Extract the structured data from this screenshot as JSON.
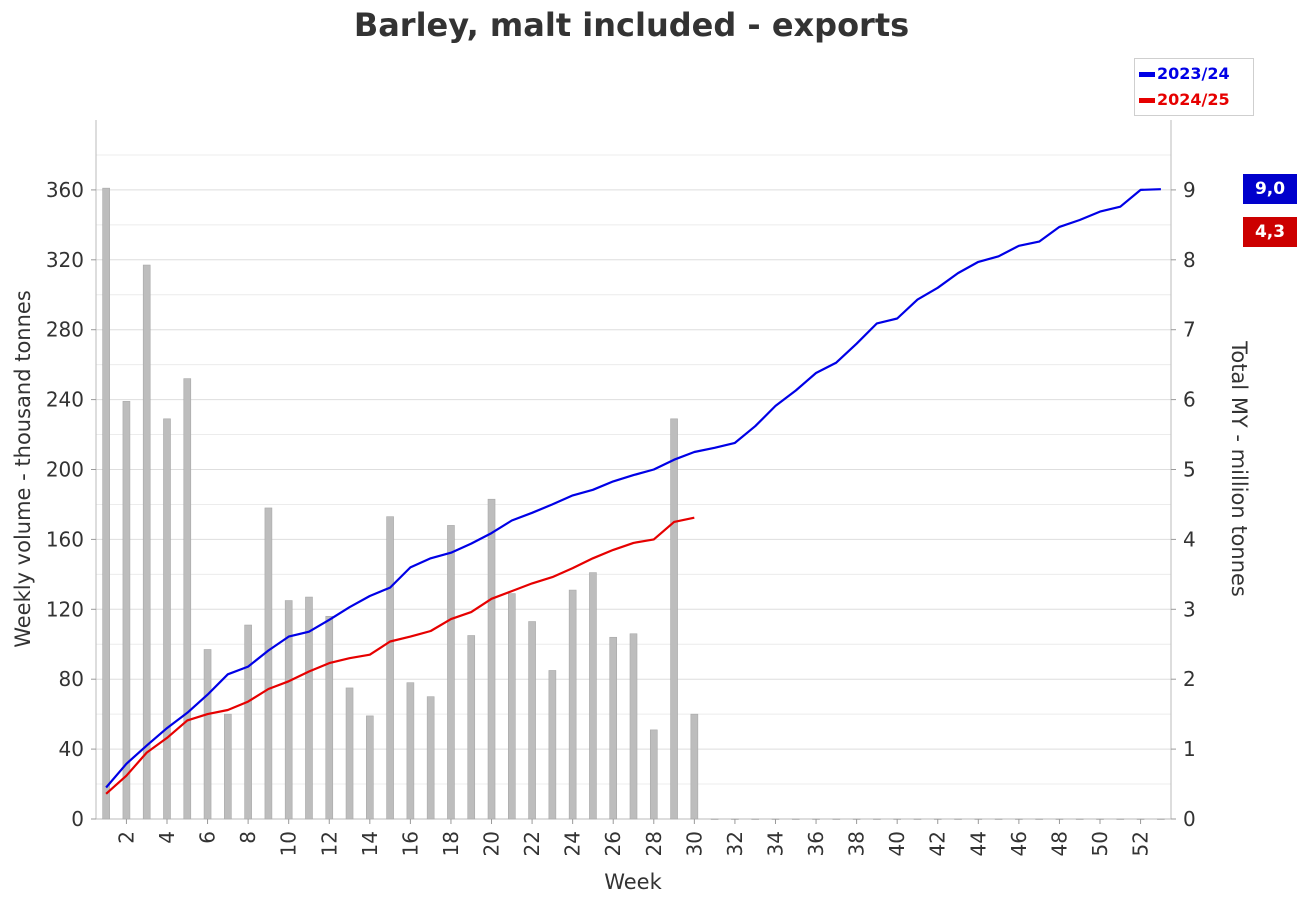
{
  "chart_data": {
    "type": "bar+line",
    "title": "Barley, malt included - exports",
    "xlabel": "Week",
    "ylabel_left": "Weekly volume - thousand tonnes",
    "ylabel_right": "Total MY - million tonnes",
    "x_ticks": [
      "2",
      "4",
      "6",
      "8",
      "10",
      "12",
      "14",
      "16",
      "18",
      "20",
      "22",
      "24",
      "26",
      "28",
      "30",
      "32",
      "34",
      "36",
      "38",
      "40",
      "42",
      "44",
      "46",
      "48",
      "50",
      "52"
    ],
    "y_left_ticks": [
      "0",
      "40",
      "80",
      "120",
      "160",
      "200",
      "240",
      "280",
      "320",
      "360"
    ],
    "y_right_ticks": [
      "0",
      "1",
      "2",
      "3",
      "4",
      "5",
      "6",
      "7",
      "8",
      "9"
    ],
    "ylim_left": [
      0,
      400
    ],
    "ylim_right": [
      0,
      10
    ],
    "weeks": [
      1,
      2,
      3,
      4,
      5,
      6,
      7,
      8,
      9,
      10,
      11,
      12,
      13,
      14,
      15,
      16,
      17,
      18,
      19,
      20,
      21,
      22,
      23,
      24,
      25,
      26,
      27,
      28,
      29,
      30,
      31,
      32,
      33,
      34,
      35,
      36,
      37,
      38,
      39,
      40,
      41,
      42,
      43,
      44,
      45,
      46,
      47,
      48,
      49,
      50,
      51,
      52,
      53
    ],
    "bars": {
      "name": "Weekly volume",
      "color": "#bdbdbd",
      "values": [
        361,
        239,
        317,
        229,
        252,
        97,
        60,
        111,
        178,
        125,
        127,
        116,
        75,
        59,
        173,
        78,
        70,
        168,
        105,
        183,
        129,
        113,
        85,
        131,
        141,
        104,
        106,
        51,
        229,
        60,
        0,
        0,
        0,
        0,
        0,
        0,
        0,
        0,
        0,
        0,
        0,
        0,
        0,
        0,
        0,
        0,
        0,
        0,
        0,
        0,
        0,
        0,
        0
      ]
    },
    "series": [
      {
        "name": "2023/24",
        "color": "#0000e6",
        "values": [
          0.45,
          0.79,
          1.05,
          1.3,
          1.52,
          1.78,
          2.07,
          2.18,
          2.41,
          2.61,
          2.68,
          2.85,
          3.03,
          3.19,
          3.31,
          3.6,
          3.73,
          3.81,
          3.94,
          4.09,
          4.27,
          4.38,
          4.5,
          4.63,
          4.71,
          4.83,
          4.92,
          5.0,
          5.14,
          5.25,
          5.31,
          5.38,
          5.62,
          5.91,
          6.13,
          6.38,
          6.53,
          6.8,
          7.09,
          7.16,
          7.43,
          7.6,
          7.81,
          7.97,
          8.05,
          8.2,
          8.26,
          8.47,
          8.57,
          8.69,
          8.76,
          9.0,
          9.01
        ]
      },
      {
        "name": "2024/25",
        "color": "#e60000",
        "values": [
          0.36,
          0.62,
          0.95,
          1.16,
          1.41,
          1.5,
          1.56,
          1.68,
          1.86,
          1.97,
          2.11,
          2.23,
          2.3,
          2.35,
          2.54,
          2.61,
          2.69,
          2.86,
          2.96,
          3.15,
          3.26,
          3.37,
          3.46,
          3.59,
          3.73,
          3.85,
          3.95,
          4.0,
          4.25,
          4.31
        ]
      }
    ],
    "legend": {
      "position": "top-right",
      "entries": [
        "2023/24",
        "2024/25"
      ]
    },
    "end_badges": [
      {
        "series": "2023/24",
        "label": "9,0",
        "color": "#0000cc"
      },
      {
        "series": "2024/25",
        "label": "4,3",
        "color": "#cc0000"
      }
    ],
    "grid": true
  }
}
